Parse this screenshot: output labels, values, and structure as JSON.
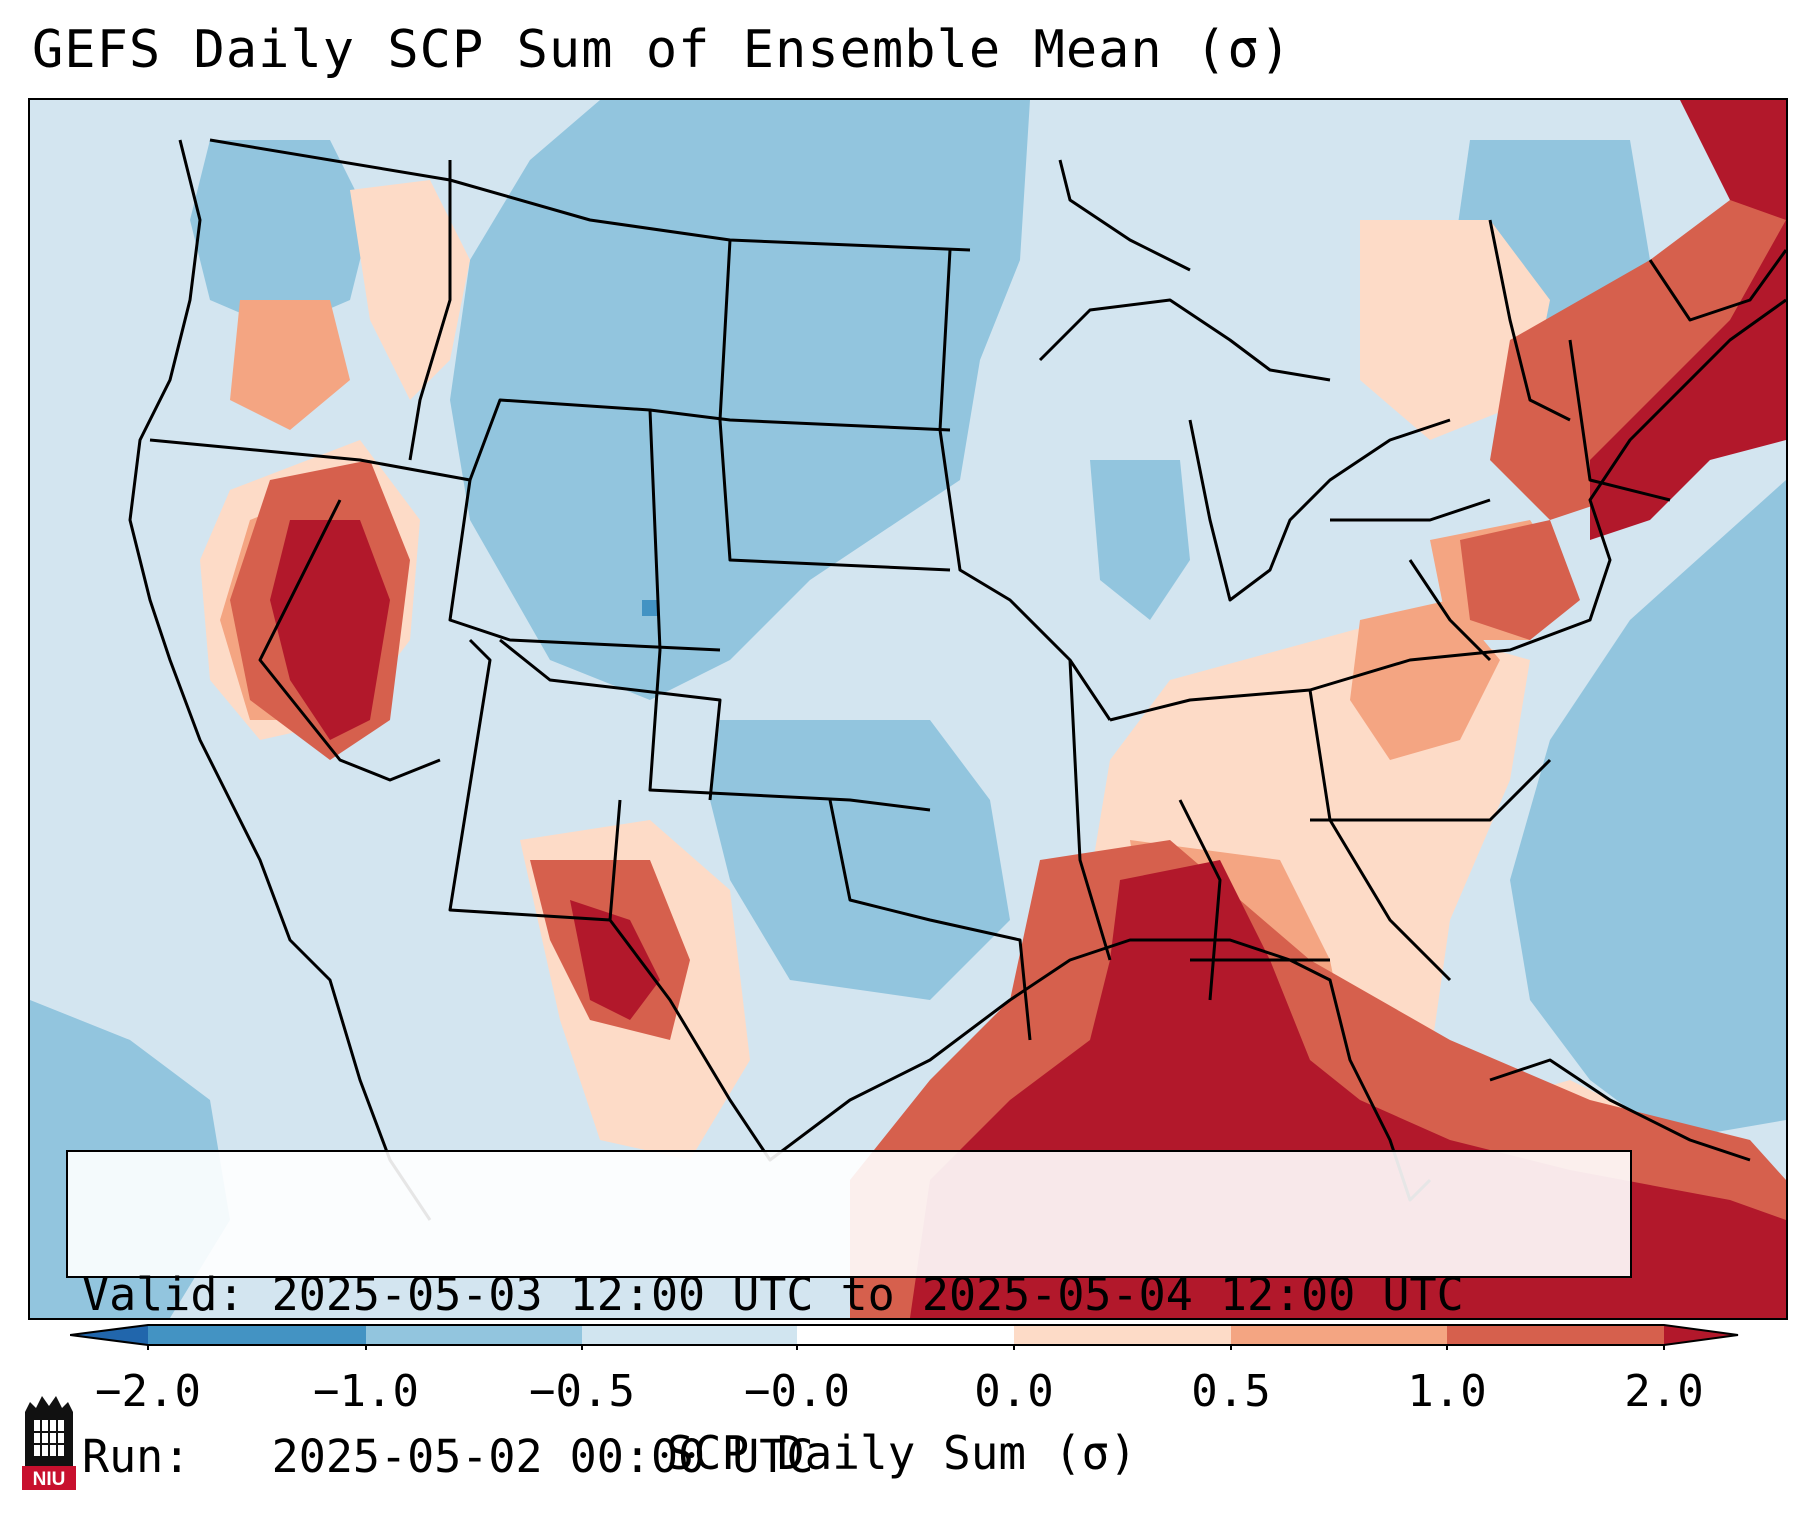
{
  "title": "GEFS Daily SCP Sum of Ensemble Mean (σ)",
  "info": {
    "valid_line": "Valid: 2025-05-03 12:00 UTC to 2025-05-04 12:00 UTC",
    "run_line": "Run:   2025-05-02 00:00 UTC"
  },
  "colorbar": {
    "label": "SCP Daily Sum (σ)",
    "ticks": [
      "−2.0",
      "−1.0",
      "−0.5",
      "−0.0",
      "0.0",
      "0.5",
      "1.0",
      "2.0"
    ],
    "colors": [
      "#4393c3",
      "#92c5de",
      "#d1e5f0",
      "#ffffff",
      "#fddbc7",
      "#f4a582",
      "#d6604d",
      "#b2182b"
    ],
    "extend_low_color": "#2166ac",
    "extend_high_color": "#b2182b"
  },
  "logo": {
    "text": "NIU",
    "color": "#c8102e"
  },
  "map": {
    "field": "SCP daily sum anomaly (σ)",
    "regions": [
      {
        "name": "Gulf of Mexico / southern Mississippi-Alabama",
        "level": "≥1.0"
      },
      {
        "name": "Nevada / Utah / southern California interior",
        "level": "≥1.0"
      },
      {
        "name": "Northern New England",
        "level": "≥1.0"
      },
      {
        "name": "Southwest Texas / New Mexico border",
        "level": "≥1.0"
      },
      {
        "name": "Mid-Atlantic / Pennsylvania",
        "level": "0.5 to 1.0"
      },
      {
        "name": "Tennessee / Kentucky / Carolinas",
        "level": "0.0 to 0.5"
      },
      {
        "name": "Northern Plains / Rockies",
        "level": "−1.0 to −0.5"
      },
      {
        "name": "Western Atlantic",
        "level": "−1.0 to −0.5"
      }
    ]
  }
}
